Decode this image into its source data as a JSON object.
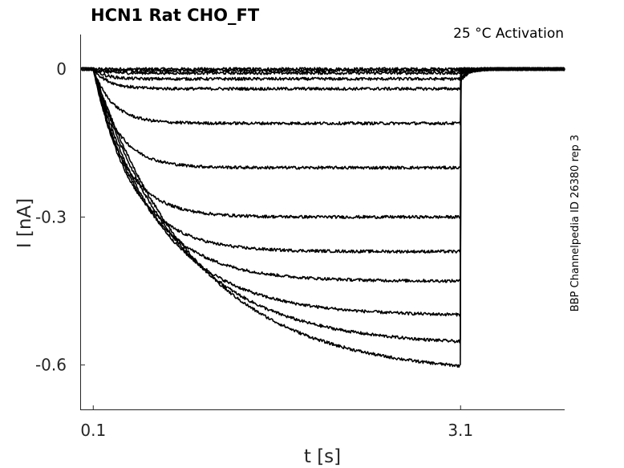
{
  "chart_data": {
    "type": "line",
    "title": "HCN1  Rat  CHO_FT",
    "annotation": "25 °C  Activation",
    "side_label": "BBP Channelpedia ID 26380 rep 3",
    "xlabel": "t [s]",
    "ylabel": "I [nA]",
    "xlim": [
      0.0,
      3.95
    ],
    "ylim": [
      -0.69,
      0.07
    ],
    "xticks": [
      0.1,
      3.1
    ],
    "xtick_labels": [
      "0.1",
      "3.1"
    ],
    "yticks": [
      0,
      -0.3,
      -0.6
    ],
    "ytick_labels": [
      "0",
      "-0.3",
      "-0.6"
    ],
    "grid": false,
    "legend": "none",
    "pulse_start": 0.1,
    "pulse_end": 3.1,
    "time_constants": [
      0.05,
      0.08,
      0.1,
      0.13,
      0.16,
      0.2,
      0.25,
      0.32,
      0.42,
      0.55,
      0.7,
      0.85
    ],
    "series_steady_state": [
      0.0,
      -0.003,
      -0.008,
      -0.02,
      -0.04,
      -0.11,
      -0.2,
      -0.3,
      -0.37,
      -0.43,
      -0.5,
      -0.56,
      -0.62
    ]
  }
}
